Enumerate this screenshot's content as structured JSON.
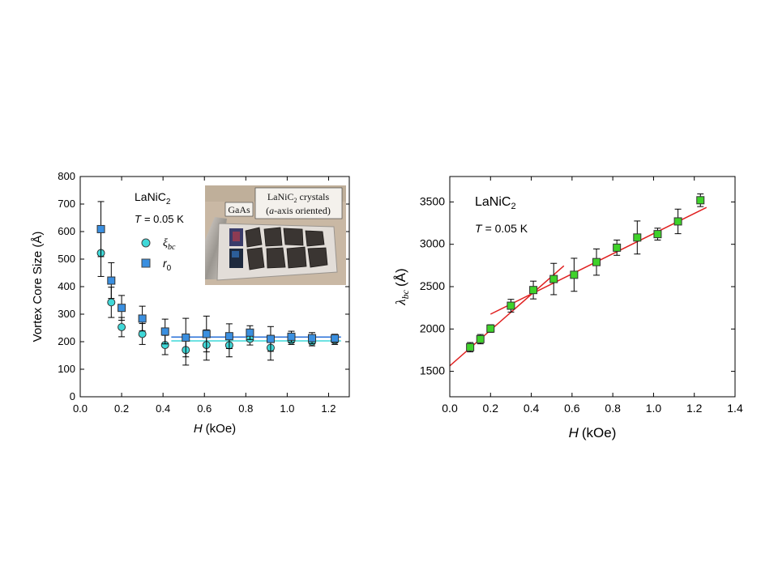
{
  "chart_data": [
    {
      "type": "scatter",
      "title": "",
      "xlabel_var": "H",
      "xlabel_unit": "(kOe)",
      "ylabel": "Vortex Core Size (Å)",
      "xlim": [
        0.0,
        1.3
      ],
      "ylim": [
        0,
        800
      ],
      "x_ticks": [
        "0.0",
        "0.2",
        "0.4",
        "0.6",
        "0.8",
        "1.0",
        "1.2"
      ],
      "y_ticks": [
        "0",
        "100",
        "200",
        "300",
        "400",
        "500",
        "600",
        "700",
        "800"
      ],
      "annotation_material": "LaNiC",
      "annotation_material_sub": "2",
      "annotation_temp_var": "T",
      "annotation_temp_value": "= 0.05 K",
      "legend_position": "upper-left",
      "series": [
        {
          "name": "ξ",
          "name_sub": "bc",
          "marker": "circle",
          "color": "#3fd8d8",
          "x": [
            0.1,
            0.15,
            0.2,
            0.3,
            0.41,
            0.51,
            0.61,
            0.72,
            0.82,
            0.92,
            1.02,
            1.12,
            1.23
          ],
          "y": [
            522,
            343,
            253,
            228,
            188,
            170,
            188,
            187,
            210,
            178,
            205,
            200,
            205
          ],
          "err": [
            85,
            55,
            35,
            38,
            35,
            55,
            55,
            42,
            22,
            45,
            15,
            15,
            15
          ]
        },
        {
          "name": "r",
          "name_sub": "0",
          "marker": "square",
          "color": "#3a8fe0",
          "x": [
            0.1,
            0.15,
            0.2,
            0.3,
            0.41,
            0.51,
            0.61,
            0.72,
            0.82,
            0.92,
            1.02,
            1.12,
            1.23
          ],
          "y": [
            609,
            422,
            323,
            284,
            237,
            215,
            228,
            220,
            233,
            210,
            218,
            213,
            212
          ],
          "err": [
            100,
            65,
            45,
            45,
            45,
            70,
            65,
            45,
            25,
            45,
            20,
            20,
            15
          ]
        }
      ],
      "fit_lines": [
        {
          "x": [
            0.44,
            1.26
          ],
          "y": [
            217,
            217
          ],
          "color": "#2a70d8"
        },
        {
          "x": [
            0.44,
            1.26
          ],
          "y": [
            203,
            203
          ],
          "color": "#3fd8d8"
        }
      ],
      "inset": {
        "label_substrate": "GaAs",
        "label_crystals_line1_main": "LaNiC",
        "label_crystals_line1_sub": "2",
        "label_crystals_line1_rest": " crystals",
        "label_crystals_line2_open": "(",
        "label_crystals_line2_var": "a",
        "label_crystals_line2_rest": "-axis oriented)"
      }
    },
    {
      "type": "scatter",
      "title": "",
      "xlabel_var": "H",
      "xlabel_unit": "(kOe)",
      "ylabel_var": "λ",
      "ylabel_sub": "bc",
      "ylabel_unit": "(Å)",
      "xlim": [
        0.0,
        1.4
      ],
      "ylim": [
        1200,
        3800
      ],
      "x_ticks": [
        "0.0",
        "0.2",
        "0.4",
        "0.6",
        "0.8",
        "1.0",
        "1.2",
        "1.4"
      ],
      "y_ticks": [
        "1500",
        "2000",
        "2500",
        "3000",
        "3500"
      ],
      "annotation_material": "LaNiC",
      "annotation_material_sub": "2",
      "annotation_temp_var": "T",
      "annotation_temp_value": "= 0.05 K",
      "series": [
        {
          "name": "",
          "marker": "square",
          "color": "#3fd22a",
          "x": [
            0.1,
            0.15,
            0.2,
            0.3,
            0.41,
            0.51,
            0.61,
            0.72,
            0.82,
            0.92,
            1.02,
            1.12,
            1.23
          ],
          "y": [
            1785,
            1880,
            2005,
            2275,
            2460,
            2590,
            2640,
            2790,
            2960,
            3080,
            3120,
            3270,
            3520
          ],
          "err": [
            55,
            55,
            45,
            75,
            105,
            185,
            195,
            155,
            90,
            195,
            70,
            145,
            75
          ]
        }
      ],
      "fit_lines": [
        {
          "x": [
            0.0,
            0.56
          ],
          "y": [
            1565,
            2745
          ],
          "color": "#e02020"
        },
        {
          "x": [
            0.2,
            1.26
          ],
          "y": [
            2175,
            3435
          ],
          "color": "#e02020"
        }
      ]
    }
  ]
}
